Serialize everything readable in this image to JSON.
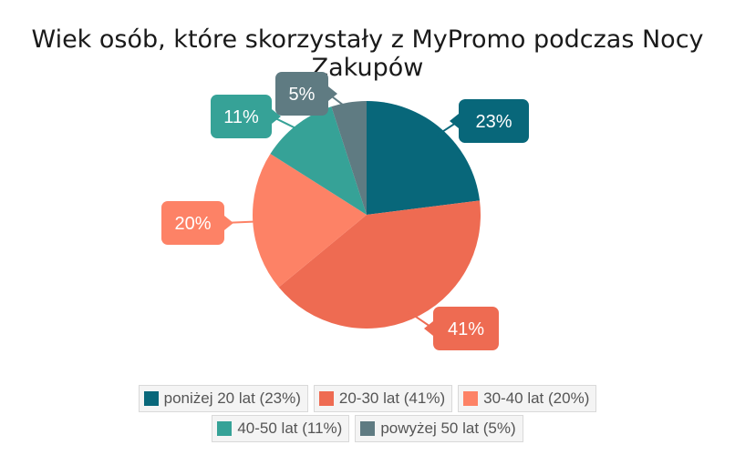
{
  "chart_data": {
    "type": "pie",
    "title": "Wiek osób, które skorzystały z MyPromo podczas Nocy Zakupów",
    "slices": [
      {
        "label": "poniżej 20 lat",
        "value": 23,
        "display": "23%",
        "legend": "poniżej 20 lat (23%)",
        "color": "#08677a"
      },
      {
        "label": "20-30 lat",
        "value": 41,
        "display": "41%",
        "legend": "20-30 lat (41%)",
        "color": "#ee6b52"
      },
      {
        "label": "30-40 lat",
        "value": 20,
        "display": "20%",
        "legend": "30-40 lat (20%)",
        "color": "#fd8266"
      },
      {
        "label": "40-50 lat",
        "value": 11,
        "display": "11%",
        "legend": "40-50 lat (11%)",
        "color": "#36a297"
      },
      {
        "label": "powyżej 50 lat",
        "value": 5,
        "display": "5%",
        "legend": "powyżej 50 lat (5%)",
        "color": "#5f7b82"
      }
    ],
    "legend_position": "bottom"
  }
}
